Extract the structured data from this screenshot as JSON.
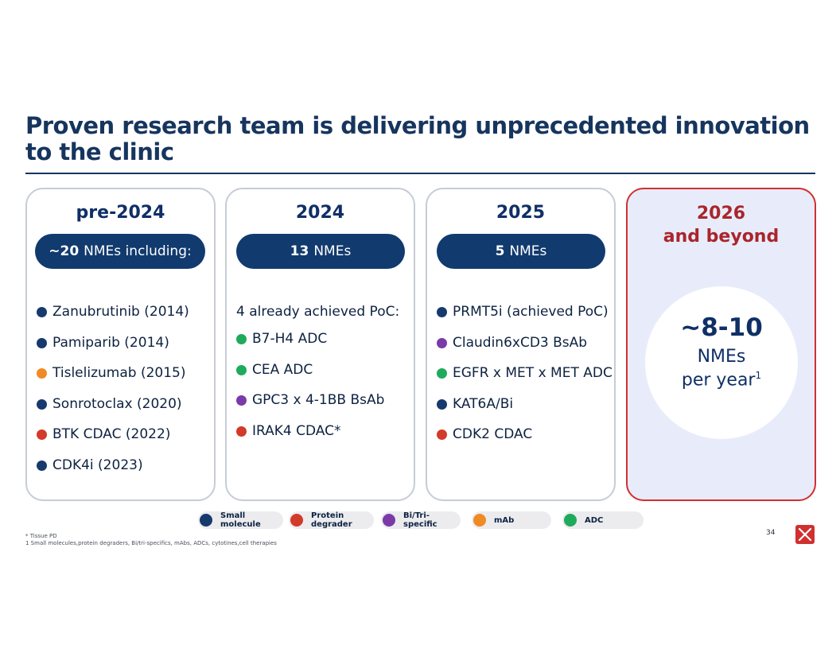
{
  "title": {
    "line1": "Proven research team is delivering unprecedented innovation",
    "line2": "to the clinic"
  },
  "columns": [
    {
      "heading": "pre-2024",
      "pill_bold": "~20",
      "pill_text": "NMEs including:",
      "items": [
        {
          "text": "Zanubrutinib (2014)",
          "category": "Small molecule"
        },
        {
          "text": "Pamiparib (2014)",
          "category": "Small molecule"
        },
        {
          "text": "Tislelizumab (2015)",
          "category": "mAb"
        },
        {
          "text": "Sonrotoclax (2020)",
          "category": "Small molecule"
        },
        {
          "text": "BTK CDAC (2022)",
          "category": "Protein degrader"
        },
        {
          "text": "CDK4i (2023)",
          "category": "Small molecule"
        }
      ]
    },
    {
      "heading": "2024",
      "pill_bold": "13",
      "pill_text": "NMEs",
      "intro": "4 already achieved PoC:",
      "items": [
        {
          "text": "B7-H4 ADC",
          "category": "ADC"
        },
        {
          "text": "CEA ADC",
          "category": "ADC"
        },
        {
          "text": "GPC3 x 4-1BB BsAb",
          "category": "Bi/Tri-specific"
        },
        {
          "text": "IRAK4 CDAC*",
          "category": "Protein degrader"
        }
      ]
    },
    {
      "heading": "2025",
      "pill_bold": "5",
      "pill_text": "NMEs",
      "items": [
        {
          "text": "PRMT5i (achieved PoC)",
          "category": "Small molecule"
        },
        {
          "text": "Claudin6xCD3 BsAb",
          "category": "Bi/Tri-specific"
        },
        {
          "text": "EGFR x MET x MET ADC",
          "category": "ADC"
        },
        {
          "text": "KAT6A/Bi",
          "category": "Small molecule"
        },
        {
          "text": "CDK2 CDAC",
          "category": "Protein degrader"
        }
      ]
    },
    {
      "heading_line1": "2026",
      "heading_line2": "and beyond",
      "big": "~8-10",
      "line1": "NMEs",
      "line2": "per year",
      "sup": "1"
    }
  ],
  "legend": [
    {
      "label": "Small molecule",
      "color": "#163a6e"
    },
    {
      "label": "Protein degrader",
      "color": "#d23a2a"
    },
    {
      "label": "Bi/Tri-specific",
      "color": "#7a3aa8"
    },
    {
      "label": "mAb",
      "color": "#f08a24"
    },
    {
      "label": "ADC",
      "color": "#1faa5c"
    }
  ],
  "footnotes": {
    "star": "* Tissue PD",
    "one": "1   Small molecules,protein degraders, Bi/tri-specifics, mAbs, ADCs, cytotines,cell therapies"
  },
  "page_number": "34",
  "colors": {
    "navy": "#113a6e",
    "red": "#d0302f",
    "future_bg": "#e8ecfa"
  }
}
